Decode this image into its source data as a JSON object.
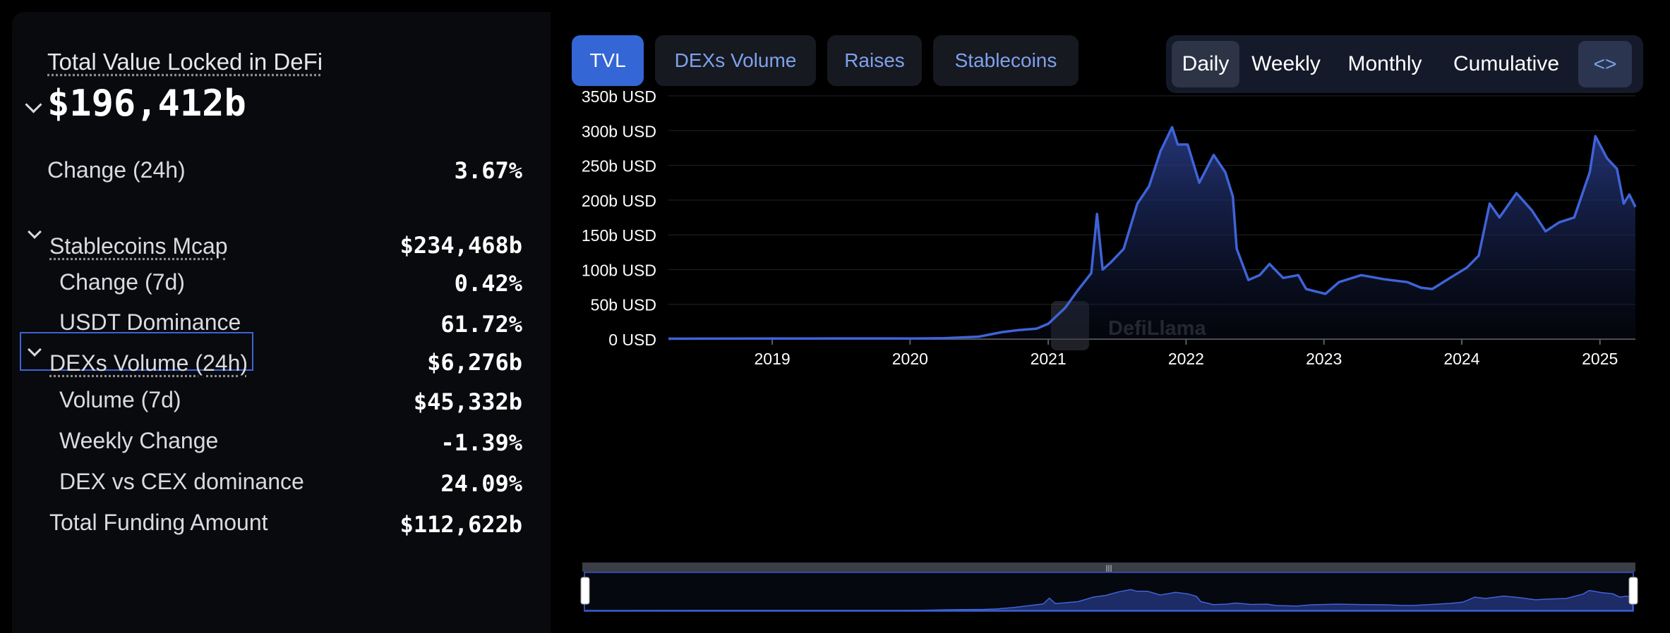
{
  "stats": {
    "tvl_label": "Total Value Locked in DeFi",
    "tvl_value": "$196,412b",
    "change24_label": "Change (24h)",
    "change24_value": "3.67%",
    "stablecoins": {
      "label": "Stablecoins Mcap",
      "value": "$234,468b",
      "change7_label": "Change (7d)",
      "change7_value": "0.42%",
      "usdt_label": "USDT Dominance",
      "usdt_value": "61.72%"
    },
    "dexs": {
      "label": "DEXs Volume (24h)",
      "value": "$6,276b",
      "vol7_label": "Volume (7d)",
      "vol7_value": "$45,332b",
      "weekly_label": "Weekly Change",
      "weekly_value": "-1.39%",
      "dexcex_label": "DEX vs CEX dominance",
      "dexcex_value": "24.09%"
    },
    "funding_label": "Total Funding Amount",
    "funding_value": "$112,622b"
  },
  "tabs": [
    "TVL",
    "DEXs Volume",
    "Raises",
    "Stablecoins"
  ],
  "active_tab": "TVL",
  "periods": [
    "Daily",
    "Weekly",
    "Monthly",
    "Cumulative"
  ],
  "active_period": "Daily",
  "embed_label": "<>",
  "watermark": "DefiLlama",
  "colors": {
    "accent": "#3566d5",
    "line": "#3f63d8",
    "panel": "#090a0d"
  },
  "chart_data": {
    "type": "area",
    "title": "",
    "xlabel": "",
    "ylabel": "",
    "ylim": [
      0,
      350
    ],
    "y_unit": "b USD",
    "y_ticks": [
      "0 USD",
      "50b USD",
      "100b USD",
      "150b USD",
      "200b USD",
      "250b USD",
      "300b USD",
      "350b USD"
    ],
    "x_ticks": [
      "2019",
      "2020",
      "2021",
      "2022",
      "2023",
      "2024",
      "2025"
    ],
    "grid": true,
    "series": [
      {
        "values": [
          [
            "2018-04-01",
            0.5
          ],
          [
            "2019-01-01",
            0.7
          ],
          [
            "2019-07-01",
            0.9
          ],
          [
            "2020-01-01",
            0.8
          ],
          [
            "2020-04-01",
            1.2
          ],
          [
            "2020-07-01",
            3.5
          ],
          [
            "2020-09-01",
            10
          ],
          [
            "2020-10-15",
            13
          ],
          [
            "2020-12-01",
            15
          ],
          [
            "2021-01-01",
            22
          ],
          [
            "2021-02-15",
            45
          ],
          [
            "2021-03-20",
            70
          ],
          [
            "2021-04-25",
            95
          ],
          [
            "2021-05-10",
            180
          ],
          [
            "2021-05-25",
            100
          ],
          [
            "2021-06-15",
            110
          ],
          [
            "2021-07-20",
            130
          ],
          [
            "2021-08-25",
            195
          ],
          [
            "2021-09-25",
            220
          ],
          [
            "2021-10-25",
            270
          ],
          [
            "2021-11-25",
            305
          ],
          [
            "2021-12-10",
            280
          ],
          [
            "2022-01-05",
            280
          ],
          [
            "2022-02-05",
            225
          ],
          [
            "2022-03-15",
            265
          ],
          [
            "2022-04-15",
            240
          ],
          [
            "2022-05-05",
            205
          ],
          [
            "2022-05-15",
            130
          ],
          [
            "2022-06-15",
            85
          ],
          [
            "2022-07-15",
            92
          ],
          [
            "2022-08-10",
            108
          ],
          [
            "2022-09-15",
            88
          ],
          [
            "2022-10-25",
            92
          ],
          [
            "2022-11-15",
            72
          ],
          [
            "2023-01-05",
            65
          ],
          [
            "2023-02-10",
            82
          ],
          [
            "2023-04-10",
            92
          ],
          [
            "2023-06-10",
            86
          ],
          [
            "2023-08-10",
            82
          ],
          [
            "2023-09-15",
            74
          ],
          [
            "2023-10-15",
            72
          ],
          [
            "2023-12-01",
            88
          ],
          [
            "2024-01-15",
            103
          ],
          [
            "2024-02-15",
            120
          ],
          [
            "2024-03-15",
            195
          ],
          [
            "2024-04-10",
            175
          ],
          [
            "2024-05-25",
            210
          ],
          [
            "2024-07-05",
            185
          ],
          [
            "2024-08-10",
            155
          ],
          [
            "2024-09-15",
            168
          ],
          [
            "2024-10-25",
            175
          ],
          [
            "2024-12-05",
            240
          ],
          [
            "2024-12-20",
            292
          ],
          [
            "2025-01-20",
            260
          ],
          [
            "2025-02-15",
            245
          ],
          [
            "2025-03-05",
            195
          ],
          [
            "2025-03-20",
            208
          ],
          [
            "2025-04-05",
            190
          ]
        ]
      }
    ]
  }
}
